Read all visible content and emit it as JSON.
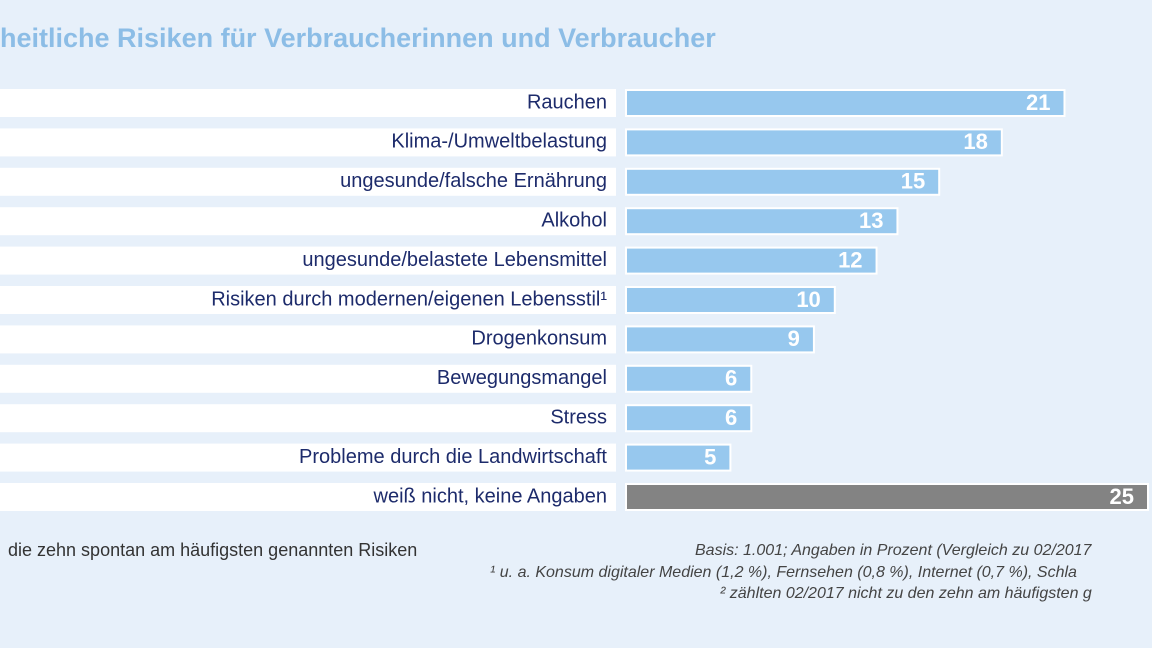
{
  "chart_data": {
    "type": "bar",
    "orientation": "horizontal",
    "title": "heitliche Risiken für Verbraucherinnen und Verbraucher",
    "categories": [
      "Rauchen",
      "Klima-/Umweltbelastung",
      "ungesunde/falsche Ernährung",
      "Alkohol",
      "ungesunde/belastete Lebensmittel",
      "Risiken durch modernen/eigenen Lebensstil¹",
      "Drogenkonsum",
      "Bewegungsmangel",
      "Stress",
      "Probleme durch die Landwirtschaft",
      "weiß nicht, keine Angaben"
    ],
    "values": [
      21,
      18,
      15,
      13,
      12,
      10,
      9,
      6,
      6,
      5,
      25
    ],
    "colors": [
      "#97c8ee",
      "#97c8ee",
      "#97c8ee",
      "#97c8ee",
      "#97c8ee",
      "#97c8ee",
      "#97c8ee",
      "#97c8ee",
      "#97c8ee",
      "#97c8ee",
      "#838383"
    ],
    "note_left": "die zehn spontan am häufigsten genannten Risiken",
    "notes_right": [
      "Basis: 1.001; Angaben in Prozent (Vergleich zu 02/2017",
      "¹ u. a. Konsum digitaler Medien (1,2 %), Fernsehen (0,8 %), Internet (0,7 %), Schla",
      "² zählten 02/2017 nicht zu den zehn am häufigsten g"
    ]
  }
}
